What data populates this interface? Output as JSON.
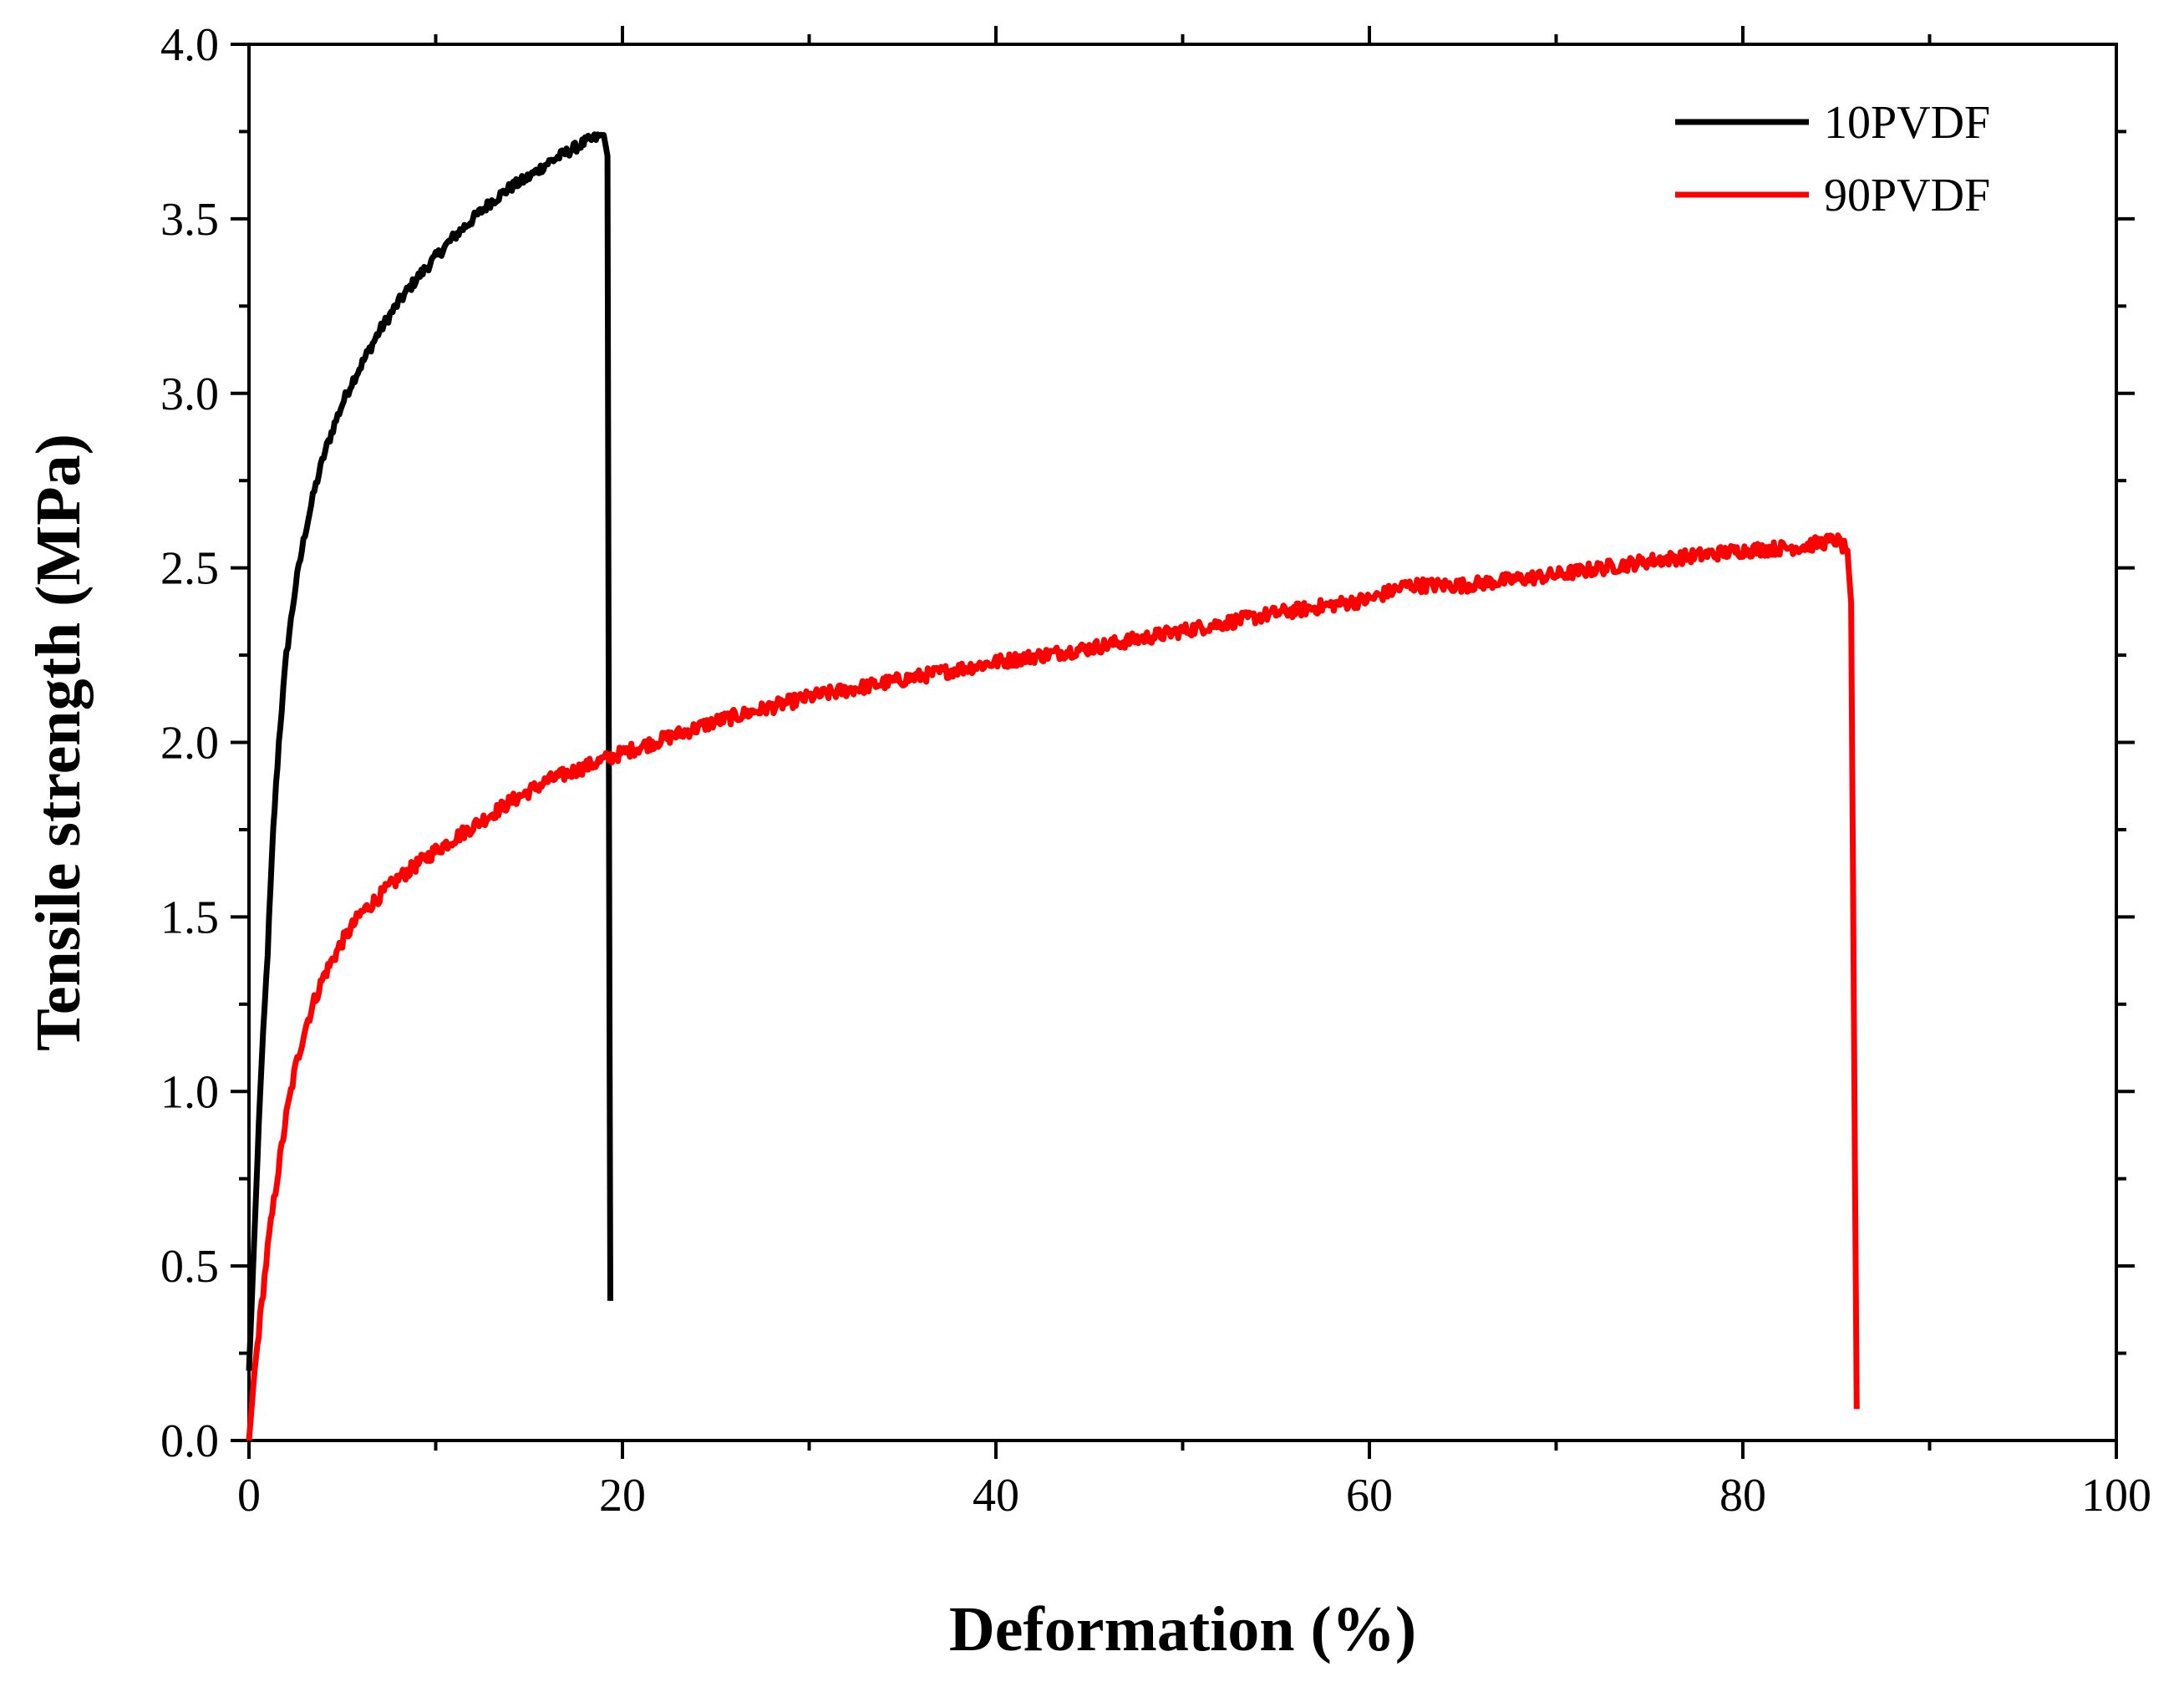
{
  "chart_data": {
    "type": "line",
    "title": "",
    "xlabel": "Deformation (%)",
    "ylabel": "Tensile strength (MPa)",
    "xlim": [
      0,
      100
    ],
    "ylim": [
      0.0,
      4.0
    ],
    "xticks": [
      0,
      20,
      40,
      60,
      80,
      100
    ],
    "xtick_labels": [
      "0",
      "20",
      "40",
      "60",
      "80",
      "100"
    ],
    "yticks": [
      0.0,
      0.5,
      1.0,
      1.5,
      2.0,
      2.5,
      3.0,
      3.5,
      4.0
    ],
    "ytick_labels": [
      "0.0",
      "0.5",
      "1.0",
      "1.5",
      "2.0",
      "2.5",
      "3.0",
      "3.5",
      "4.0"
    ],
    "grid": false,
    "legend_position": "top-right",
    "series": [
      {
        "name": "10PVDF",
        "color": "#000000",
        "x": [
          0,
          0.3,
          0.6,
          1.0,
          1.3,
          1.6,
          2.0,
          2.5,
          3.0,
          3.5,
          4.0,
          4.5,
          5.0,
          5.5,
          6.0,
          7.0,
          8.0,
          9.0,
          10.0,
          11.0,
          12.0,
          13.0,
          14.0,
          15.0,
          16.0,
          17.0,
          18.0,
          18.5,
          19.0,
          19.2,
          19.25,
          19.3,
          19.35
        ],
        "y": [
          0.2,
          0.6,
          1.0,
          1.4,
          1.75,
          2.0,
          2.25,
          2.45,
          2.6,
          2.72,
          2.82,
          2.9,
          2.97,
          3.03,
          3.08,
          3.18,
          3.26,
          3.33,
          3.39,
          3.45,
          3.5,
          3.55,
          3.59,
          3.62,
          3.66,
          3.69,
          3.72,
          3.73,
          3.74,
          3.68,
          2.5,
          1.3,
          0.4
        ]
      },
      {
        "name": "90PVDF",
        "color": "#ff0000",
        "x": [
          0,
          0.3,
          0.6,
          1.0,
          1.5,
          2.0,
          2.5,
          3.0,
          3.5,
          4.0,
          5.0,
          6.0,
          7.0,
          8.0,
          9.0,
          10.0,
          12.0,
          14.0,
          16.0,
          18.0,
          20.0,
          25.0,
          30.0,
          35.0,
          40.0,
          45.0,
          50.0,
          55.0,
          60.0,
          62.0,
          65.0,
          70.0,
          75.0,
          80.0,
          83.0,
          85.0,
          85.6,
          85.8,
          85.9,
          86.0,
          86.1
        ],
        "y": [
          0.0,
          0.2,
          0.35,
          0.55,
          0.75,
          0.93,
          1.07,
          1.18,
          1.26,
          1.33,
          1.43,
          1.51,
          1.56,
          1.61,
          1.65,
          1.69,
          1.76,
          1.83,
          1.89,
          1.93,
          1.97,
          2.06,
          2.13,
          2.18,
          2.23,
          2.27,
          2.32,
          2.37,
          2.41,
          2.45,
          2.45,
          2.48,
          2.52,
          2.55,
          2.56,
          2.58,
          2.55,
          2.4,
          1.6,
          0.8,
          0.09
        ]
      }
    ]
  }
}
